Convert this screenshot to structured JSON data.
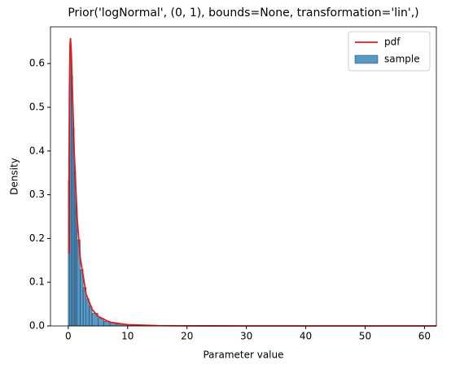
{
  "chart_data": {
    "type": "histogram",
    "title": "Prior('logNormal', (0, 1), bounds=None, transformation='lin',)",
    "x_label": "Parameter value",
    "y_label": "Density",
    "xlim": [
      -3,
      62
    ],
    "ylim": [
      0,
      0.684
    ],
    "xticks": [
      0,
      10,
      20,
      30,
      40,
      50,
      60
    ],
    "yticks": [
      {
        "value": 0,
        "label": "0.0"
      },
      0.1,
      0.2,
      0.3,
      0.4,
      0.5,
      0.6
    ],
    "legend": "upper right",
    "series": [
      {
        "name": "pdf",
        "type": "line",
        "color": "#e41a1c",
        "x": [
          0.07,
          0.1,
          0.2,
          0.3,
          0.37,
          0.5,
          0.7,
          1,
          1.5,
          2,
          3,
          4,
          5,
          7,
          10,
          15,
          20,
          30,
          40,
          50,
          62
        ],
        "values": [
          0.166,
          0.282,
          0.546,
          0.644,
          0.658,
          0.627,
          0.535,
          0.399,
          0.245,
          0.157,
          0.0727,
          0.0381,
          0.0219,
          0.0086,
          0.0028,
          0.00068,
          0.0002,
          2e-05,
          0,
          0,
          0
        ]
      },
      {
        "name": "sample",
        "type": "histogram",
        "color": "#1f77b4",
        "bins": [
          0,
          0.25,
          0.5,
          0.75,
          1,
          1.25,
          1.5,
          2,
          2.5,
          3,
          3.5,
          4,
          5,
          6,
          7,
          8,
          10,
          12,
          15,
          20,
          30,
          62
        ],
        "values": [
          0.332,
          0.645,
          0.571,
          0.453,
          0.353,
          0.276,
          0.197,
          0.129,
          0.088,
          0.062,
          0.045,
          0.029,
          0.0172,
          0.0108,
          0.007,
          0.0041,
          0.0021,
          0.001,
          0.0004,
          0.00011,
          1e-05
        ]
      }
    ]
  }
}
